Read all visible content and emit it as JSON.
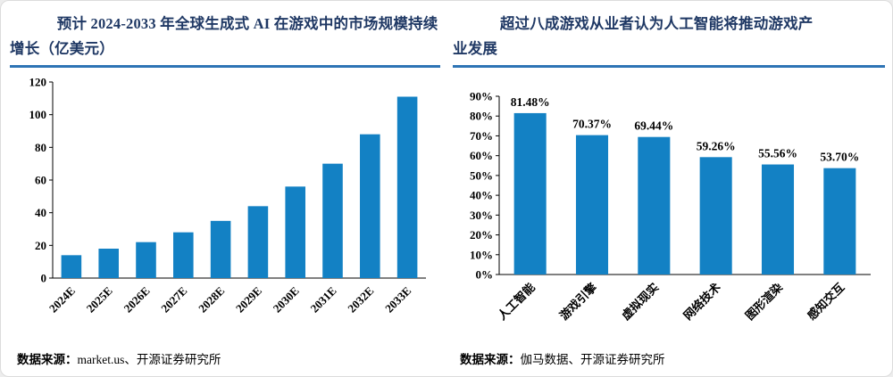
{
  "colors": {
    "bar": "#1381C4",
    "title_text": "#1F3864",
    "title_rule": "#2E74B5",
    "axis": "#000000",
    "label_text": "#000000"
  },
  "left_panel": {
    "title": "预计 2024-2033 年全球生成式 AI 在游戏中的市场规模持续增长（亿美元）",
    "source_label": "数据来源：",
    "source_text": "market.us、开源证券研究所"
  },
  "right_panel": {
    "title": "超过八成游戏从业者认为人工智能将推动游戏产业发展",
    "source_label": "数据来源：",
    "source_text": "伽马数据、开源证券研究所"
  },
  "chart_data": [
    {
      "type": "bar",
      "name": "genai-gaming-market-size-chart",
      "title": "预计 2024-2033 年全球生成式 AI 在游戏中的市场规模持续增长（亿美元）",
      "categories": [
        "2024E",
        "2025E",
        "2026E",
        "2027E",
        "2028E",
        "2029E",
        "2030E",
        "2031E",
        "2032E",
        "2033E"
      ],
      "values": [
        14,
        18,
        22,
        28,
        35,
        44,
        56,
        70,
        88,
        111
      ],
      "xlabel": "",
      "ylabel": "亿美元",
      "ylim": [
        0,
        120
      ],
      "ytick_step": 20,
      "ytick_format": "number",
      "show_value_labels": false,
      "grid": false,
      "legend": "none"
    },
    {
      "type": "bar",
      "name": "ai-industry-survey-chart",
      "title": "超过八成游戏从业者认为人工智能将推动游戏产业发展",
      "categories": [
        "人工智能",
        "游戏引擎",
        "虚拟现实",
        "网络技术",
        "图形渲染",
        "感知交互"
      ],
      "values": [
        81.48,
        70.37,
        69.44,
        59.26,
        55.56,
        53.7
      ],
      "value_labels": [
        "81.48%",
        "70.37%",
        "69.44%",
        "59.26%",
        "55.56%",
        "53.70%"
      ],
      "xlabel": "",
      "ylabel": "",
      "ylim": [
        0,
        90
      ],
      "ytick_step": 10,
      "ytick_format": "percent",
      "show_value_labels": true,
      "grid": false,
      "legend": "none"
    }
  ]
}
